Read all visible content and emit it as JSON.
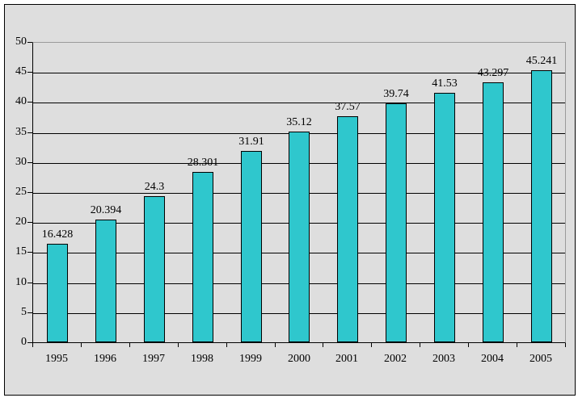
{
  "chart_data": {
    "type": "bar",
    "title": "",
    "xlabel": "",
    "ylabel": "",
    "categories": [
      "1995",
      "1996",
      "1997",
      "1998",
      "1999",
      "2000",
      "2001",
      "2002",
      "2003",
      "2004",
      "2005"
    ],
    "values": [
      16.428,
      20.394,
      24.3,
      28.301,
      31.91,
      35.12,
      37.57,
      39.74,
      41.53,
      43.297,
      45.241
    ],
    "value_labels": [
      "16.428",
      "20.394",
      "24.3",
      "28.301",
      "31.91",
      "35.12",
      "37.57",
      "39.74",
      "41.53",
      "43.297",
      "45.241"
    ],
    "ylim": [
      0,
      50
    ],
    "ytick_step": 5,
    "ytick_labels": [
      "0",
      "5",
      "10",
      "15",
      "20",
      "25",
      "30",
      "35",
      "40",
      "45",
      "50"
    ],
    "grid": true,
    "legend": false,
    "colors": {
      "bar_fill": "#2fc7cd",
      "bar_border": "#000000",
      "plot_background": "#dedede",
      "outer_background": "#ffffff",
      "frame_border": "#000000",
      "plot_border": "#9a9a9a",
      "gridline": "#000000",
      "text": "#000000"
    }
  }
}
